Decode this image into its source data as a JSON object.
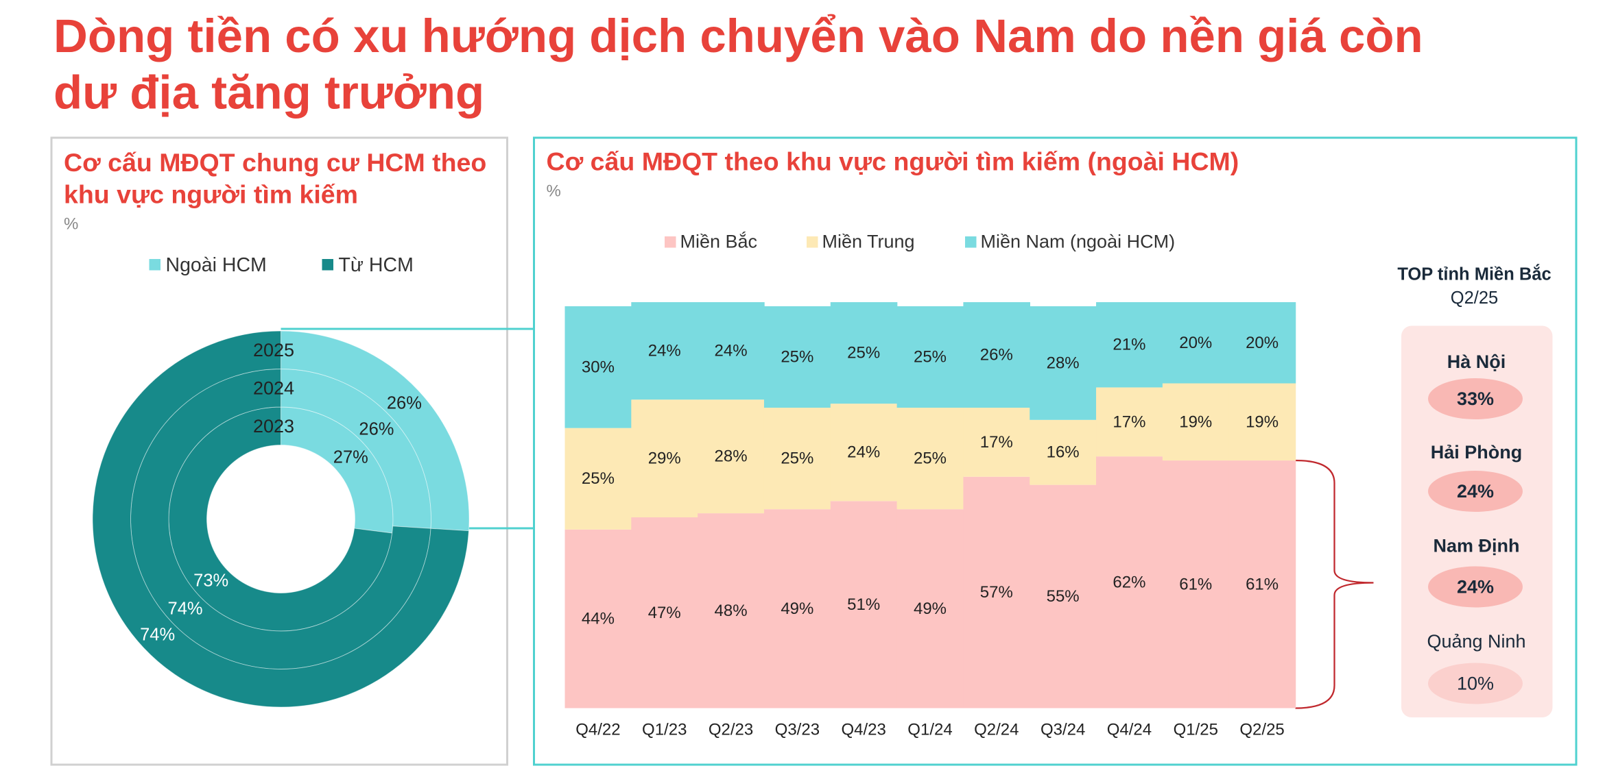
{
  "title": [
    "Dòng tiền có xu hướng dịch chuyển vào Nam do nền giá còn",
    "dư địa tăng trưởng"
  ],
  "chart_data": [
    {
      "type": "donut",
      "title": [
        "Cơ cấu MĐQT chung cư HCM theo",
        "khu vực người tìm kiếm"
      ],
      "unit": "%",
      "categories": [
        "2023",
        "2024",
        "2025"
      ],
      "series": [
        {
          "name": "Ngoài HCM",
          "color": "#7adbe0",
          "values": [
            27,
            26,
            26
          ],
          "value_labels": [
            "27%",
            "26%",
            "26%"
          ]
        },
        {
          "name": "Từ HCM",
          "color": "#178a8a",
          "values": [
            73,
            74,
            74
          ],
          "value_labels": [
            "73%",
            "74%",
            "74%"
          ]
        }
      ]
    },
    {
      "type": "stacked_bar",
      "title": "Cơ cấu MĐQT theo khu vực người tìm kiếm (ngoài HCM)",
      "unit": "%",
      "categories": [
        "Q4/22",
        "Q1/23",
        "Q2/23",
        "Q3/23",
        "Q4/23",
        "Q1/24",
        "Q2/24",
        "Q3/24",
        "Q4/24",
        "Q1/25",
        "Q2/25"
      ],
      "ylim": [
        0,
        100
      ],
      "series": [
        {
          "name": "Miền Bắc",
          "color": "#fdc5c3",
          "values": [
            44,
            47,
            48,
            49,
            51,
            49,
            57,
            55,
            62,
            61,
            61
          ],
          "value_labels": [
            "44%",
            "47%",
            "48%",
            "49%",
            "51%",
            "49%",
            "57%",
            "55%",
            "62%",
            "61%",
            "61%"
          ]
        },
        {
          "name": "Miền Trung",
          "color": "#fde9b5",
          "values": [
            25,
            29,
            28,
            25,
            24,
            25,
            17,
            16,
            17,
            19,
            19
          ],
          "value_labels": [
            "25%",
            "29%",
            "28%",
            "25%",
            "24%",
            "25%",
            "17%",
            "16%",
            "17%",
            "19%",
            "19%"
          ]
        },
        {
          "name": "Miền Nam (ngoài HCM)",
          "color": "#7adbe0",
          "values": [
            30,
            24,
            24,
            25,
            25,
            25,
            26,
            28,
            21,
            20,
            20
          ],
          "value_labels": [
            "30%",
            "24%",
            "24%",
            "25%",
            "25%",
            "25%",
            "26%",
            "28%",
            "21%",
            "20%",
            "20%"
          ]
        }
      ]
    }
  ],
  "top_list": {
    "title": "TOP tỉnh Miền Bắc",
    "subtitle": "Q2/25",
    "items": [
      {
        "name": "Hà Nội",
        "value": "33%"
      },
      {
        "name": "Hải Phòng",
        "value": "24%"
      },
      {
        "name": "Nam Định",
        "value": "24%"
      },
      {
        "name": "Quảng Ninh",
        "value": "10%"
      }
    ]
  }
}
